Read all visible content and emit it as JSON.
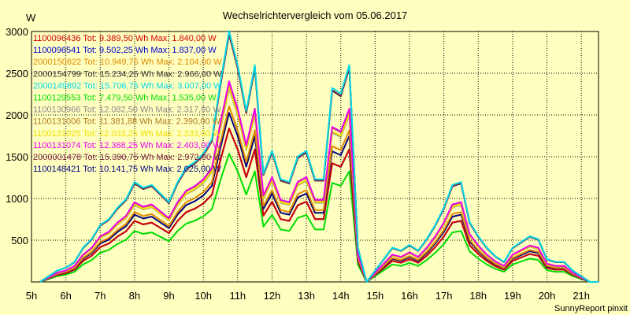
{
  "chart_data": {
    "type": "line",
    "title": "Wechselrichtervergleich vom 05.06.2017",
    "ylabel": "W",
    "footer": "SunnyReport pinxit",
    "ylim": [
      0,
      3000
    ],
    "xlim": [
      5,
      21.5
    ],
    "x_ticks": [
      {
        "x": 5,
        "label": "5h"
      },
      {
        "x": 6,
        "label": "6h"
      },
      {
        "x": 7,
        "label": "7h"
      },
      {
        "x": 8,
        "label": "8h"
      },
      {
        "x": 9,
        "label": "9h"
      },
      {
        "x": 10,
        "label": "10h"
      },
      {
        "x": 11,
        "label": "11h"
      },
      {
        "x": 12,
        "label": "12h"
      },
      {
        "x": 13,
        "label": "13h"
      },
      {
        "x": 14,
        "label": "14h"
      },
      {
        "x": 15,
        "label": "15h"
      },
      {
        "x": 16,
        "label": "16h"
      },
      {
        "x": 17,
        "label": "17h"
      },
      {
        "x": 18,
        "label": "18h"
      },
      {
        "x": 19,
        "label": "19h"
      },
      {
        "x": 20,
        "label": "20h"
      },
      {
        "x": 21,
        "label": "21h"
      }
    ],
    "y_ticks": [
      {
        "y": 500,
        "label": "500"
      },
      {
        "y": 1000,
        "label": "1000"
      },
      {
        "y": 1500,
        "label": "1500"
      },
      {
        "y": 2000,
        "label": "2000"
      },
      {
        "y": 2500,
        "label": "2500"
      },
      {
        "y": 3000,
        "label": "3000"
      }
    ],
    "grid": true,
    "legend_position": "top-left",
    "profile": {
      "x": [
        5.25,
        5.5,
        5.75,
        6,
        6.25,
        6.5,
        6.75,
        7,
        7.25,
        7.5,
        7.75,
        8,
        8.25,
        8.5,
        8.75,
        9,
        9.25,
        9.5,
        9.75,
        10,
        10.25,
        10.5,
        10.75,
        11,
        11.25,
        11.5,
        11.75,
        12,
        12.25,
        12.5,
        12.75,
        13,
        13.25,
        13.5,
        13.75,
        14,
        14.25,
        14.5,
        14.75,
        15,
        15.25,
        15.5,
        15.75,
        16,
        16.25,
        16.5,
        16.75,
        17,
        17.25,
        17.5,
        17.75,
        18,
        18.25,
        18.5,
        18.75,
        19,
        19.25,
        19.5,
        19.75,
        20,
        20.25,
        20.5,
        20.75,
        21,
        21.25,
        21.5
      ],
      "y": [
        0,
        0.02,
        0.04,
        0.05,
        0.07,
        0.12,
        0.15,
        0.2,
        0.22,
        0.26,
        0.29,
        0.35,
        0.33,
        0.34,
        0.31,
        0.28,
        0.35,
        0.4,
        0.42,
        0.45,
        0.5,
        0.7,
        0.88,
        0.76,
        0.6,
        0.76,
        0.38,
        0.46,
        0.36,
        0.35,
        0.44,
        0.46,
        0.36,
        0.36,
        0.68,
        0.66,
        0.76,
        0.12,
        0,
        0.04,
        0.08,
        0.12,
        0.11,
        0.13,
        0.11,
        0.15,
        0.2,
        0.26,
        0.34,
        0.35,
        0.21,
        0.16,
        0.12,
        0.09,
        0.07,
        0.12,
        0.14,
        0.16,
        0.15,
        0.08,
        0.07,
        0.07,
        0.04,
        0.02,
        0,
        0
      ]
    },
    "series": [
      {
        "name": "1100096436",
        "label": "1100096436 Tot: 9.389,50 Wh Max: 1.840,00 W",
        "color": "#d40000",
        "peak": 1840
      },
      {
        "name": "1100096541",
        "label": "1100096541 Tot: 9.502,25 Wh Max: 1.837,00 W",
        "color": "#0000cc",
        "peak": 1837
      },
      {
        "name": "2000150622",
        "label": "2000150622 Tot: 10.949,75 Wh Max: 2.104,00 W",
        "color": "#e08a00",
        "peak": 2104
      },
      {
        "name": "2000154799",
        "label": "2000154799 Tot: 15.234,25 Wh Max: 2.966,00 W",
        "color": "#333333",
        "peak": 2966
      },
      {
        "name": "2000149892",
        "label": "2000149892 Tot: 15.706,75 Wh Max: 3.007,00 W",
        "color": "#00d8e8",
        "peak": 3007
      },
      {
        "name": "1100129553",
        "label": "1100129553 Tot: 7.479,50 Wh Max: 1.535,00 W",
        "color": "#00dd00",
        "peak": 1535
      },
      {
        "name": "1100130966",
        "label": "1100130966 Tot: 12.082,50 Wh Max: 2.317,00 W",
        "color": "#888888",
        "peak": 2317
      },
      {
        "name": "1100131006",
        "label": "1100131006 Tot: 11.381,88 Wh Max: 2.390,00 W",
        "color": "#b07a20",
        "peak": 2390
      },
      {
        "name": "1100131025",
        "label": "1100131025 Tot: 12.033,25 Wh Max: 2.333,00 W",
        "color": "#f0e000",
        "peak": 2333
      },
      {
        "name": "1100131074",
        "label": "1100131074 Tot: 12.388,25 Wh Max: 2.403,00 W",
        "color": "#ee00ee",
        "peak": 2403
      },
      {
        "name": "2000001478",
        "label": "2000001478 Tot: 15.390,75 Wh Max: 2.972,00 W",
        "color": "#7a2040",
        "peak": 2972
      },
      {
        "name": "1100148421",
        "label": "1100148421 Tot: 10.141,75 Wh Max: 2.025,00 W",
        "color": "#000080",
        "peak": 2025
      }
    ]
  }
}
